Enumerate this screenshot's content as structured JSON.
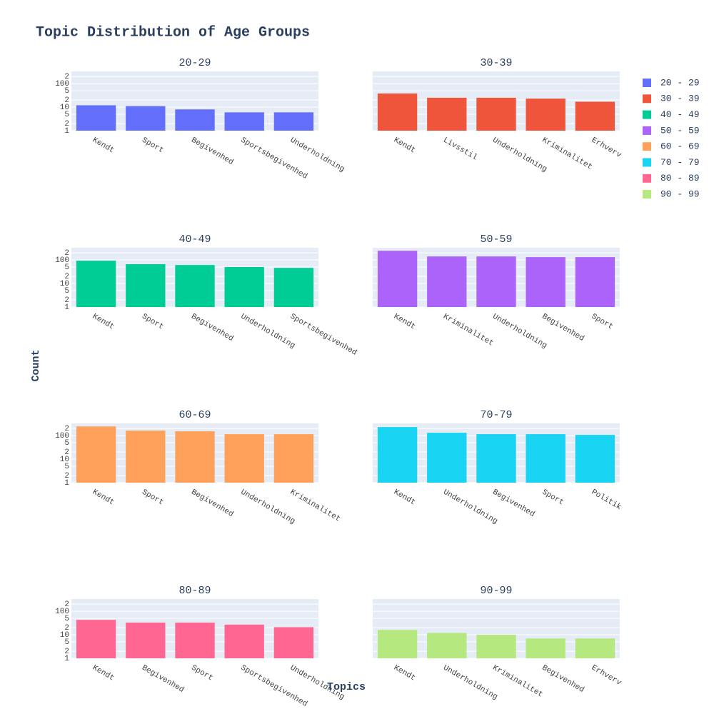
{
  "chart_data": {
    "type": "bar",
    "title": "Topic Distribution of Age Groups",
    "x_label": "Topics",
    "y_label": "Count",
    "log_y": true,
    "grid": true,
    "legend": "right",
    "ylim": [
      1,
      330
    ],
    "yticks": [
      1,
      2,
      5,
      10,
      {
        "value": 20,
        "label": "2"
      },
      {
        "value": 50,
        "label": "5"
      },
      100,
      {
        "value": 200,
        "label": "2"
      }
    ],
    "series": [
      {
        "name": "20 - 29",
        "title": "20-29",
        "color": "#636efa",
        "categories": [
          "Kendt",
          "Sport",
          "Begivenhed",
          "Sportsbegivenhed",
          "Underholdning"
        ],
        "values": [
          12,
          11,
          8,
          6,
          6
        ]
      },
      {
        "name": "30 - 39",
        "title": "30-39",
        "color": "#ef553b",
        "categories": [
          "Kendt",
          "Livsstil",
          "Underholdning",
          "Kriminalitet",
          "Erhverv"
        ],
        "values": [
          38,
          25,
          25,
          23,
          17
        ]
      },
      {
        "name": "40 - 49",
        "title": "40-49",
        "color": "#00cc96",
        "categories": [
          "Kendt",
          "Sport",
          "Begivenhed",
          "Underholdning",
          "Sportsbegivenhed"
        ],
        "values": [
          93,
          66,
          61,
          50,
          46
        ]
      },
      {
        "name": "50 - 59",
        "title": "50-59",
        "color": "#ab63fa",
        "categories": [
          "Kendt",
          "Kriminalitet",
          "Underholdning",
          "Begivenhed",
          "Sport"
        ],
        "values": [
          246,
          141,
          141,
          132,
          132
        ]
      },
      {
        "name": "60 - 69",
        "title": "60-69",
        "color": "#ffa15a",
        "categories": [
          "Kendt",
          "Sport",
          "Begivenhed",
          "Underholdning",
          "Kriminalitet"
        ],
        "values": [
          246,
          163,
          152,
          115,
          115
        ]
      },
      {
        "name": "70 - 79",
        "title": "70-79",
        "color": "#19d3f3",
        "categories": [
          "Kendt",
          "Underholdning",
          "Begivenhed",
          "Sport",
          "Politik"
        ],
        "values": [
          230,
          132,
          115,
          115,
          107
        ]
      },
      {
        "name": "80 - 89",
        "title": "80-89",
        "color": "#ff6692",
        "categories": [
          "Kendt",
          "Begivenhed",
          "Sport",
          "Sportsbegivenhed",
          "Underholdning"
        ],
        "values": [
          43,
          33,
          33,
          27,
          21
        ]
      },
      {
        "name": "90 - 99",
        "title": "90-99",
        "color": "#b6e880",
        "categories": [
          "Kendt",
          "Underholdning",
          "Kriminalitet",
          "Begivenhed",
          "Erhverv"
        ],
        "values": [
          16,
          12,
          10,
          7,
          7
        ]
      }
    ]
  }
}
